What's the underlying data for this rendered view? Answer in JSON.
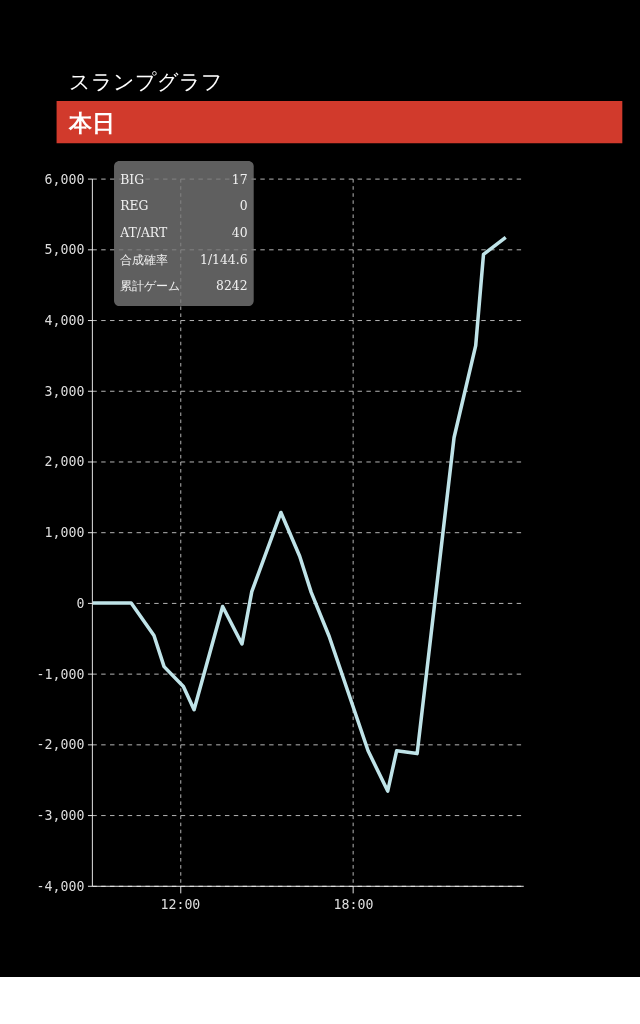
{
  "chart_data": {
    "type": "line",
    "title": "スランプグラフ",
    "subtitle": "本日",
    "x": [
      8.98,
      10.31,
      11.1,
      11.45,
      12.12,
      12.49,
      13.48,
      14.15,
      14.49,
      15.5,
      16.15,
      16.55,
      17.17,
      18.52,
      19.2,
      19.51,
      20.22,
      21.5,
      22.25,
      22.52,
      23.29
    ],
    "series": [
      {
        "color": "#bfe3e8",
        "values": [
          0,
          0,
          -460,
          -900,
          -1180,
          -1510,
          -50,
          -580,
          160,
          1280,
          660,
          150,
          -470,
          -2090,
          -2660,
          -2090,
          -2130,
          2340,
          3640,
          4930,
          5170
        ]
      }
    ],
    "xlim": [
      8.95,
      23.9
    ],
    "xticks": [
      {
        "value": 12,
        "label": "12:00"
      },
      {
        "value": 18,
        "label": "18:00"
      }
    ],
    "ylim": [
      -4000,
      6000
    ],
    "yticks": [
      {
        "value": -4000,
        "label": "-4,000"
      },
      {
        "value": -3000,
        "label": "-3,000"
      },
      {
        "value": -2000,
        "label": "-2,000"
      },
      {
        "value": -1000,
        "label": "-1,000"
      },
      0,
      {
        "value": 1000,
        "label": "1,000"
      },
      {
        "value": 2000,
        "label": "2,000"
      },
      {
        "value": 3000,
        "label": "3,000"
      },
      {
        "value": 4000,
        "label": "4,000"
      },
      {
        "value": 5000,
        "label": "5,000"
      },
      {
        "value": 6000,
        "label": "6,000"
      }
    ],
    "grid": true,
    "marker": "none",
    "line_style": "solid",
    "annotations": [
      "BIG 17",
      "REG 0",
      "AT/ART 40",
      "合成確率 1/144.6",
      "累計ゲーム 8242"
    ]
  }
}
